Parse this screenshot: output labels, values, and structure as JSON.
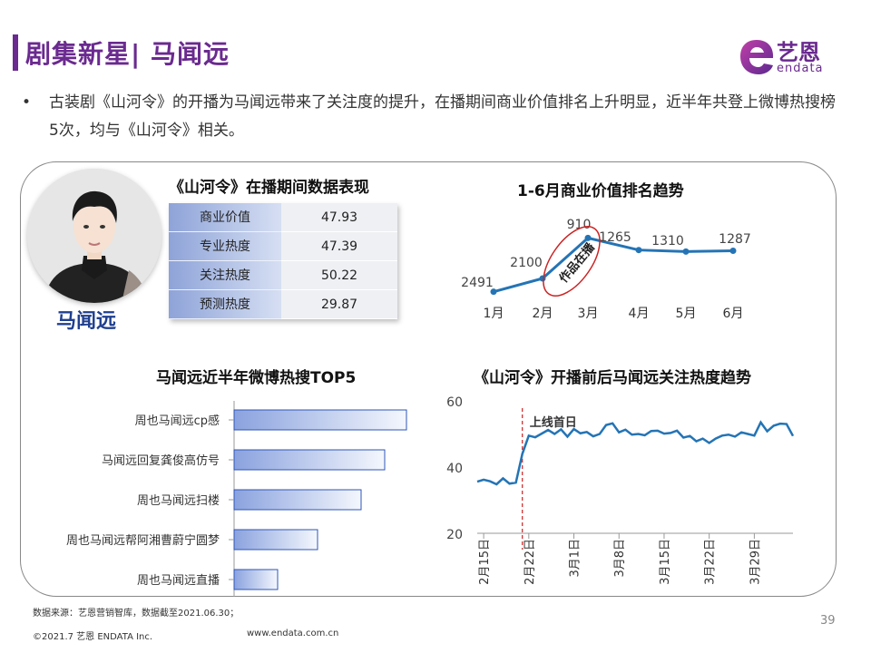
{
  "header": {
    "title": "剧集新星| 马闻远",
    "logo_text": "艺恩",
    "logo_sub": "endata"
  },
  "bullet": {
    "symbol": "•",
    "text": "古装剧《山河令》的开播为马闻远带来了关注度的提升，在播期间商业价值排名上升明显，近半年共登上微博热搜榜5次，均与《山河令》相关。"
  },
  "profile": {
    "name": "马闻远"
  },
  "colors": {
    "accent": "#6a2a8f",
    "line": "#2474b5",
    "bar": "#7f98d9",
    "name": "#1f3f8f",
    "marker": "#cc2222"
  },
  "perf_section": {
    "title": "《山河令》在播期间数据表现",
    "rows": [
      {
        "label": "商业价值",
        "value": "47.93"
      },
      {
        "label": "专业热度",
        "value": "47.39"
      },
      {
        "label": "关注热度",
        "value": "50.22"
      },
      {
        "label": "预测热度",
        "value": "29.87"
      }
    ]
  },
  "chart_data": [
    {
      "type": "line",
      "title": "1-6月商业价值排名趋势",
      "categories": [
        "1月",
        "2月",
        "3月",
        "4月",
        "5月",
        "6月"
      ],
      "values": [
        2491,
        2100,
        910,
        1265,
        1310,
        1287
      ],
      "y_inverted": true,
      "data_labels": [
        "2491",
        "2100",
        "910",
        "1265",
        "1310",
        "1287"
      ],
      "annotation": "作品在播",
      "grid": false
    },
    {
      "type": "bar",
      "orientation": "horizontal",
      "title": "马闻远近半年微博热搜TOP5",
      "categories": [
        "周也马闻远cp感",
        "马闻远回复龚俊高仿号",
        "周也马闻远扫楼",
        "周也马闻远帮阿湘曹蔚宁圆梦",
        "周也马闻远直播"
      ],
      "values": [
        190,
        166,
        140,
        92,
        48
      ],
      "value_axis": false
    },
    {
      "type": "line",
      "title": "《山河令》开播前后马闻远关注热度趋势",
      "x_ticks": [
        "2月15日",
        "2月22日",
        "3月1日",
        "3月8日",
        "3月15日",
        "3月22日",
        "3月29日"
      ],
      "ylim": [
        20,
        60
      ],
      "y_ticks": [
        20,
        40,
        60
      ],
      "marker_label": "上线首日",
      "marker_day": 7,
      "values": [
        35.6,
        36.2,
        35.7,
        34.8,
        36.6,
        35.0,
        35.3,
        44.0,
        49.5,
        49.0,
        50.1,
        51.2,
        50.0,
        51.4,
        49.2,
        51.5,
        50.2,
        50.6,
        49.3,
        50.0,
        52.7,
        53.2,
        50.5,
        51.3,
        49.8,
        50.0,
        49.6,
        50.9,
        51.0,
        50.1,
        50.3,
        51.0,
        48.9,
        49.4,
        47.8,
        48.6,
        47.3,
        48.6,
        49.5,
        49.8,
        49.2,
        50.5,
        50.0,
        49.5,
        53.5,
        50.8,
        52.5,
        53.1,
        53.0,
        49.4
      ]
    }
  ],
  "footer": {
    "source": "数据来源：艺恩营销智库，数据截至2021.06.30；",
    "copyright": "©2021.7 艺恩 ENDATA Inc.",
    "website": "www.endata.com.cn",
    "page_number": "39"
  }
}
